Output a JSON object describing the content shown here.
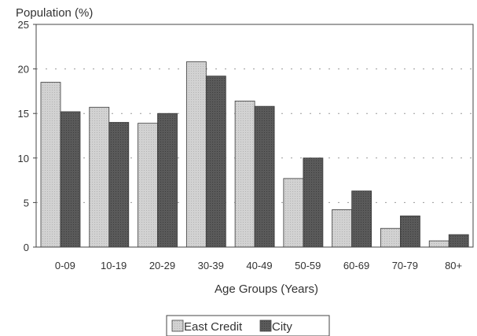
{
  "chart_data": {
    "type": "bar",
    "ylabel": "Population (%)",
    "xlabel": "Age Groups (Years)",
    "ylim": [
      0,
      25
    ],
    "yticks": [
      0,
      5,
      10,
      15,
      20,
      25
    ],
    "grid": "dotted horizontal",
    "legend_position": "bottom",
    "categories": [
      "0-09",
      "10-19",
      "20-29",
      "30-39",
      "40-49",
      "50-59",
      "60-69",
      "70-79",
      "80+"
    ],
    "series": [
      {
        "name": "East Credit",
        "color": "#c8c8c8",
        "values": [
          18.5,
          15.7,
          13.9,
          20.8,
          16.4,
          7.7,
          4.2,
          2.1,
          0.7
        ]
      },
      {
        "name": "City",
        "color": "#555555",
        "values": [
          15.2,
          14.0,
          15.0,
          19.2,
          15.8,
          10.0,
          6.3,
          3.5,
          1.4
        ]
      }
    ]
  }
}
